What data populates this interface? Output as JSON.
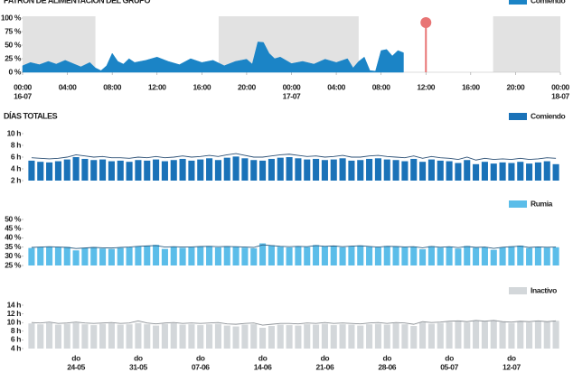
{
  "chart_data": [
    {
      "type": "area",
      "title": "PATRÓN DE ALIMENTACIÓN DEL GRUPO",
      "series": [
        {
          "name": "Comiendo",
          "color": "#1b84c6",
          "x": [
            0,
            0.7,
            1.5,
            2.3,
            3,
            3.8,
            4.5,
            5.2,
            6,
            6.5,
            7,
            7.5,
            8,
            8.5,
            9,
            9.5,
            10,
            11,
            12,
            13,
            14,
            15,
            16,
            17,
            18,
            19,
            20,
            20.5,
            21,
            21.5,
            22,
            22.5,
            23,
            24,
            25,
            26,
            27,
            28,
            29,
            29.5,
            30,
            30.5,
            31,
            31.5,
            32,
            32.5,
            33,
            33.5,
            34
          ],
          "values": [
            12,
            18,
            14,
            20,
            15,
            22,
            16,
            10,
            18,
            8,
            3,
            12,
            35,
            20,
            15,
            25,
            18,
            22,
            28,
            20,
            14,
            25,
            18,
            22,
            12,
            20,
            24,
            15,
            56,
            55,
            35,
            25,
            28,
            16,
            20,
            15,
            24,
            18,
            25,
            8,
            20,
            28,
            3,
            2,
            40,
            42,
            30,
            40,
            36
          ]
        }
      ],
      "xlim": [
        0,
        48
      ],
      "xticks": [
        {
          "value": 0,
          "label": [
            "00:00",
            "16-07"
          ]
        },
        {
          "value": 4,
          "label": [
            "04:00"
          ]
        },
        {
          "value": 8,
          "label": [
            "08:00"
          ]
        },
        {
          "value": 12,
          "label": [
            "12:00"
          ]
        },
        {
          "value": 16,
          "label": [
            "16:00"
          ]
        },
        {
          "value": 20,
          "label": [
            "20:00"
          ]
        },
        {
          "value": 24,
          "label": [
            "00:00",
            "17-07"
          ]
        },
        {
          "value": 28,
          "label": [
            "04:00"
          ]
        },
        {
          "value": 32,
          "label": [
            "08:00"
          ]
        },
        {
          "value": 36,
          "label": [
            "12:00"
          ]
        },
        {
          "value": 40,
          "label": [
            "16:00"
          ]
        },
        {
          "value": 44,
          "label": [
            "20:00"
          ]
        },
        {
          "value": 48,
          "label": [
            "00:00",
            "18-07"
          ]
        }
      ],
      "ylim": [
        0,
        100
      ],
      "yticks": [
        {
          "value": 0,
          "label": "0 %"
        },
        {
          "value": 25,
          "label": "25 %"
        },
        {
          "value": 50,
          "label": "50 %"
        },
        {
          "value": 75,
          "label": "75 %"
        },
        {
          "value": 100,
          "label": "100 %"
        }
      ],
      "shaded_x": [
        [
          0,
          6.5
        ],
        [
          17.5,
          30
        ],
        [
          42,
          48
        ]
      ],
      "shade_color": "#e2e2e2",
      "now_x": 36,
      "now_color": "#e87474"
    },
    {
      "type": "bar",
      "title": "DÍAS TOTALES",
      "series": [
        {
          "name": "Comiendo",
          "color": "#1a72b8",
          "values": [
            5.4,
            5.2,
            5.1,
            5.3,
            5.6,
            6.0,
            5.7,
            5.5,
            5.6,
            5.3,
            5.4,
            5.2,
            5.5,
            5.4,
            5.6,
            5.3,
            5.5,
            5.7,
            5.4,
            5.6,
            5.8,
            5.5,
            5.9,
            6.1,
            5.8,
            5.5,
            5.4,
            5.7,
            5.9,
            6.0,
            5.8,
            5.6,
            5.7,
            5.5,
            5.6,
            5.8,
            5.4,
            5.5,
            5.7,
            5.8,
            5.6,
            5.5,
            5.3,
            5.7,
            5.2,
            5.6,
            5.4,
            5.3,
            5.0,
            5.5,
            4.8,
            5.2,
            4.9,
            5.1,
            5.0,
            5.2,
            4.9,
            5.1,
            5.3,
            4.8
          ]
        },
        {
          "color": "#2b4f74",
          "values": [
            5.9,
            5.8,
            5.7,
            5.8,
            6.0,
            6.4,
            6.2,
            6.0,
            6.1,
            5.9,
            5.9,
            5.8,
            6.0,
            5.9,
            6.1,
            5.9,
            6.0,
            6.2,
            6.0,
            6.1,
            6.3,
            6.1,
            6.4,
            6.6,
            6.3,
            6.0,
            6.0,
            6.2,
            6.4,
            6.5,
            6.3,
            6.1,
            6.2,
            6.0,
            6.1,
            6.3,
            6.0,
            6.0,
            6.2,
            6.3,
            6.1,
            6.0,
            5.9,
            6.2,
            5.8,
            6.1,
            5.9,
            5.8,
            5.6,
            6.0,
            5.5,
            5.8,
            5.6,
            5.7,
            5.6,
            5.8,
            5.6,
            5.7,
            5.9,
            5.8
          ]
        }
      ],
      "ylim": [
        2,
        10
      ],
      "yticks": [
        {
          "value": 2,
          "label": "2 h"
        },
        {
          "value": 4,
          "label": "4 h"
        },
        {
          "value": 6,
          "label": "6 h"
        },
        {
          "value": 8,
          "label": "8 h"
        },
        {
          "value": 10,
          "label": "10 h"
        }
      ]
    },
    {
      "type": "bar",
      "series": [
        {
          "name": "Rumia",
          "color": "#5bbde9",
          "values": [
            34.5,
            35.0,
            35.2,
            34.8,
            35.1,
            33.2,
            34.6,
            35.0,
            34.2,
            34.0,
            34.5,
            34.8,
            35.4,
            35.8,
            36.2,
            34.0,
            35.2,
            34.6,
            34.9,
            35.3,
            35.6,
            34.8,
            35.5,
            35.1,
            34.7,
            34.3,
            37.0,
            36.0,
            35.2,
            34.8,
            35.4,
            35.0,
            36.1,
            35.3,
            35.8,
            34.9,
            35.5,
            35.9,
            35.2,
            34.8,
            35.6,
            35.3,
            34.9,
            35.1,
            33.8,
            35.5,
            34.7,
            35.3,
            34.2,
            35.6,
            34.6,
            35.0,
            33.5,
            34.8,
            35.4,
            35.8,
            34.5,
            35.1,
            34.7,
            34.9
          ]
        },
        {
          "color": "#2b5c80",
          "values": [
            34.8,
            35.0,
            35.2,
            35.0,
            34.8,
            34.2,
            34.5,
            34.8,
            34.6,
            34.5,
            34.8,
            35.0,
            35.4,
            35.6,
            35.8,
            35.0,
            35.2,
            35.0,
            35.1,
            35.3,
            35.4,
            35.2,
            35.3,
            35.2,
            35.0,
            34.8,
            36.2,
            35.8,
            35.4,
            35.2,
            35.4,
            35.2,
            35.8,
            35.4,
            35.6,
            35.2,
            35.5,
            35.7,
            35.3,
            35.0,
            35.4,
            35.3,
            35.1,
            35.2,
            34.6,
            35.3,
            34.9,
            35.2,
            34.7,
            35.3,
            34.8,
            35.0,
            34.3,
            34.9,
            35.2,
            35.5,
            34.8,
            35.1,
            34.9,
            35.0
          ]
        }
      ],
      "ylim": [
        25,
        50
      ],
      "yticks": [
        {
          "value": 25,
          "label": "25 %"
        },
        {
          "value": 30,
          "label": "30 %"
        },
        {
          "value": 35,
          "label": "35 %"
        },
        {
          "value": 40,
          "label": "40 %"
        },
        {
          "value": 45,
          "label": "45 %"
        },
        {
          "value": 50,
          "label": "50 %"
        }
      ]
    },
    {
      "type": "bar",
      "categories": [
        null,
        null,
        null,
        null,
        null,
        [
          "do",
          "24-05"
        ],
        null,
        null,
        null,
        null,
        null,
        null,
        [
          "do",
          "31-05"
        ],
        null,
        null,
        null,
        null,
        null,
        null,
        [
          "do",
          "07-06"
        ],
        null,
        null,
        null,
        null,
        null,
        null,
        [
          "do",
          "14-06"
        ],
        null,
        null,
        null,
        null,
        null,
        null,
        [
          "do",
          "21-06"
        ],
        null,
        null,
        null,
        null,
        null,
        null,
        [
          "do",
          "28-06"
        ],
        null,
        null,
        null,
        null,
        null,
        null,
        [
          "do",
          "05-07"
        ],
        null,
        null,
        null,
        null,
        null,
        null,
        [
          "do",
          "12-07"
        ],
        null,
        null,
        null,
        null,
        null
      ],
      "series": [
        {
          "name": "Inactivo",
          "color": "#d3d7da",
          "values": [
            9.8,
            9.6,
            9.9,
            9.5,
            9.7,
            9.9,
            9.6,
            9.4,
            9.7,
            9.8,
            9.5,
            9.6,
            9.9,
            9.6,
            9.3,
            9.7,
            9.8,
            9.5,
            9.6,
            9.4,
            9.6,
            9.7,
            9.3,
            9.1,
            9.5,
            9.6,
            8.8,
            9.2,
            9.5,
            9.4,
            9.3,
            9.6,
            9.5,
            9.7,
            9.4,
            9.6,
            9.5,
            9.3,
            9.6,
            9.7,
            9.5,
            9.8,
            9.6,
            9.2,
            10.0,
            9.7,
            9.9,
            10.1,
            10.3,
            10.0,
            10.4,
            10.2,
            10.5,
            10.1,
            9.9,
            10.2,
            10.0,
            10.3,
            10.1,
            10.4
          ]
        },
        {
          "color": "#8a8f94",
          "values": [
            10.0,
            9.9,
            10.1,
            9.8,
            9.9,
            10.1,
            9.9,
            9.8,
            9.9,
            10.0,
            9.8,
            9.9,
            10.4,
            9.9,
            9.7,
            9.9,
            10.0,
            9.8,
            9.9,
            9.8,
            9.9,
            10.0,
            9.7,
            9.6,
            9.8,
            9.9,
            9.4,
            9.6,
            9.8,
            9.8,
            9.7,
            9.9,
            9.8,
            10.0,
            9.8,
            9.9,
            9.8,
            9.7,
            9.9,
            10.0,
            9.8,
            10.0,
            9.9,
            9.6,
            10.2,
            10.0,
            10.1,
            10.3,
            10.4,
            10.2,
            10.5,
            10.3,
            10.5,
            10.2,
            10.1,
            10.3,
            10.2,
            10.4,
            10.2,
            10.4
          ]
        }
      ],
      "ylim": [
        4,
        14
      ],
      "yticks": [
        {
          "value": 4,
          "label": "4 h"
        },
        {
          "value": 6,
          "label": "6 h"
        },
        {
          "value": 8,
          "label": "8 h"
        },
        {
          "value": 10,
          "label": "10 h"
        },
        {
          "value": 12,
          "label": "12 h"
        },
        {
          "value": 14,
          "label": "14 h"
        }
      ]
    }
  ]
}
